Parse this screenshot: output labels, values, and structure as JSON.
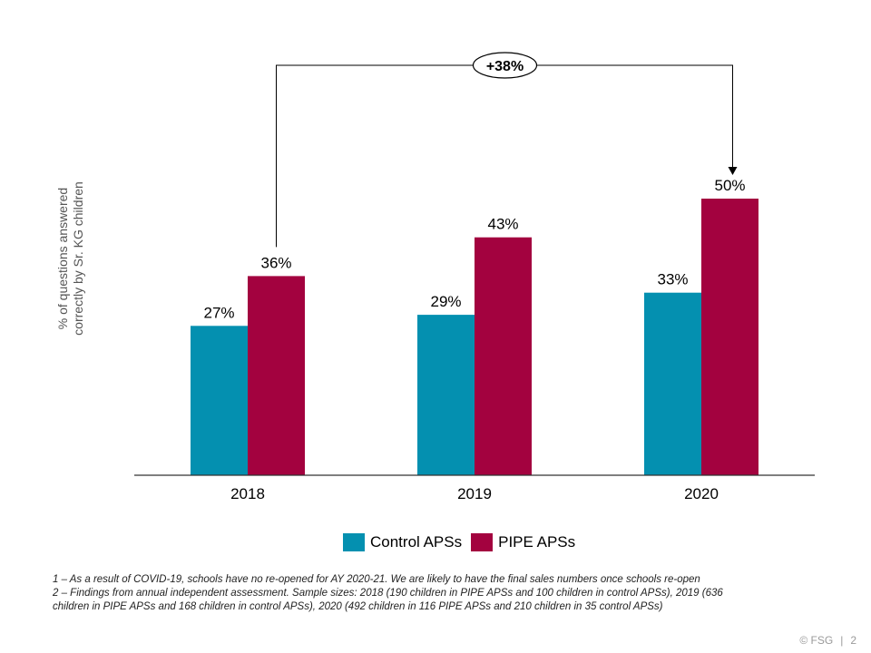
{
  "colors": {
    "control": "#0490b0",
    "pipe": "#a3023f",
    "axis": "#333333"
  },
  "chart_data": {
    "type": "bar",
    "categories": [
      "2018",
      "2019",
      "2020"
    ],
    "series": [
      {
        "name": "Control APSs",
        "values": [
          27,
          29,
          33
        ],
        "labels": [
          "27%",
          "29%",
          "33%"
        ]
      },
      {
        "name": "PIPE APSs",
        "values": [
          36,
          43,
          50
        ],
        "labels": [
          "36%",
          "43%",
          "50%"
        ]
      }
    ],
    "ylabel": [
      "% of questions answered",
      "correctly by Sr. KG children"
    ],
    "ylim": [
      0,
      60
    ],
    "grid": false,
    "legend": "bottom",
    "annotation": {
      "text": "+38%",
      "from": "PIPE APSs 2018",
      "to": "PIPE APSs 2020"
    }
  },
  "footnotes": [
    "1 – As a result of COVID-19,  schools have  no re-opened   for AY 2020-21.  We are likely to have  the final sales numbers once schools re-open",
    "2 – Findings from annual independent  assessment. Sample sizes: 2018 (190 children  in PIPE APSs and 100 children in control APSs), 2019 (636",
    "children in PIPE APSs and 168 children  in control APSs), 2020 (492 children in 116 PIPE APSs and 210 children in 35 control APSs)"
  ],
  "footer": {
    "copyright": "© FSG",
    "separator": "|",
    "page": "2"
  }
}
